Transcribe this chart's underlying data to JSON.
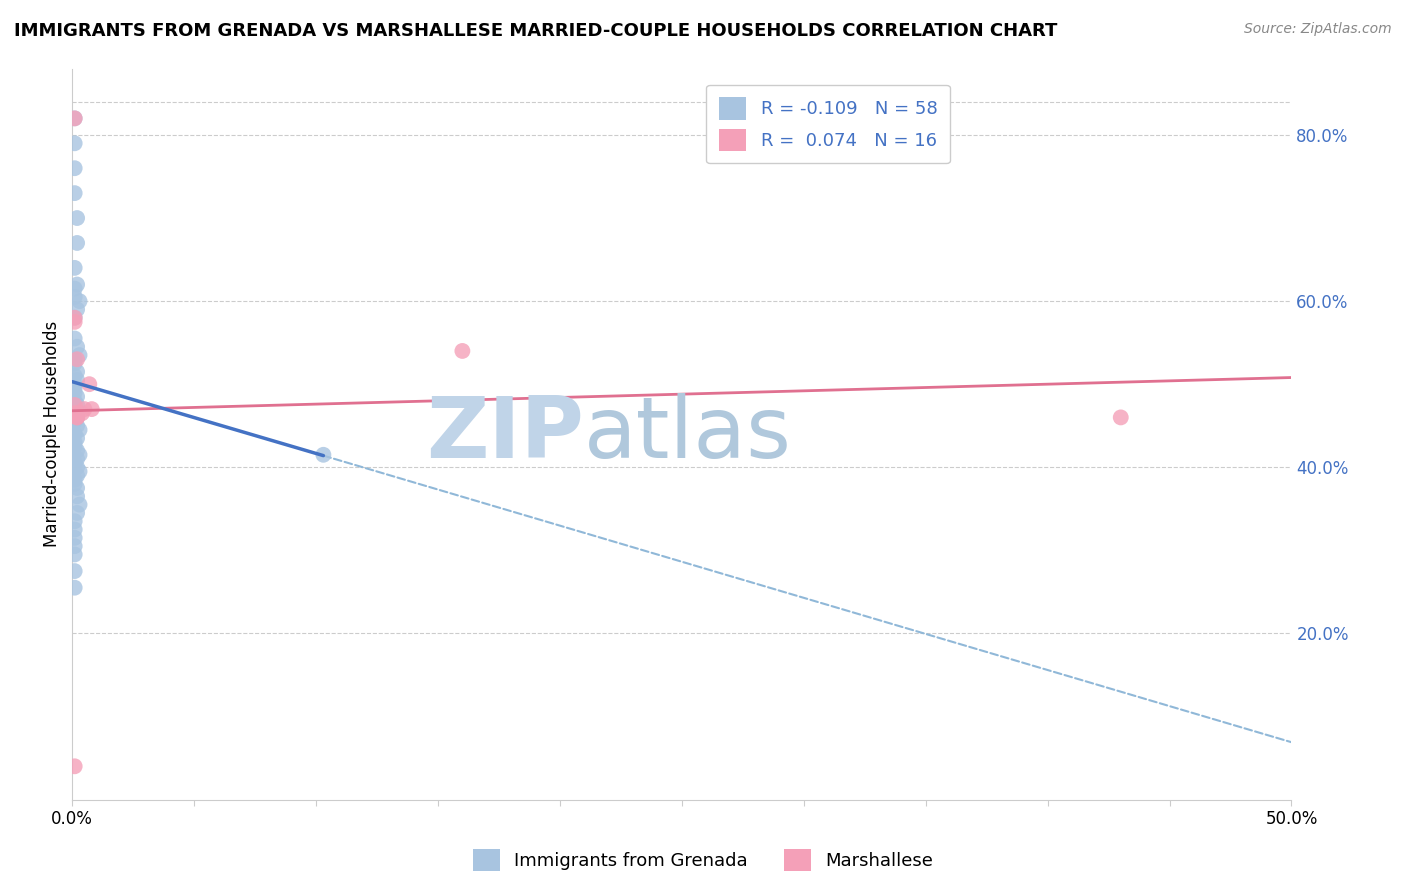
{
  "title": "IMMIGRANTS FROM GRENADA VS MARSHALLESE MARRIED-COUPLE HOUSEHOLDS CORRELATION CHART",
  "source": "Source: ZipAtlas.com",
  "ylabel_left": "Married-couple Households",
  "legend_label1": "Immigrants from Grenada",
  "legend_label2": "Marshallese",
  "R1": -0.109,
  "N1": 58,
  "R2": 0.074,
  "N2": 16,
  "color_blue": "#a8c4e0",
  "color_pink": "#f4a0b8",
  "line_blue": "#4472c4",
  "line_pink": "#e07090",
  "line_dashed": "#90b8d8",
  "xlim": [
    0.0,
    0.5
  ],
  "ylim": [
    0.0,
    0.88
  ],
  "xticks": [
    0.0,
    0.05,
    0.1,
    0.15,
    0.2,
    0.25,
    0.3,
    0.35,
    0.4,
    0.45,
    0.5
  ],
  "xtick_labels": [
    "0.0%",
    "",
    "",
    "",
    "",
    "",
    "",
    "",
    "",
    "",
    "50.0%"
  ],
  "yticks_right": [
    0.2,
    0.4,
    0.6,
    0.8
  ],
  "ytick_labels_right": [
    "20.0%",
    "40.0%",
    "60.0%",
    "80.0%"
  ],
  "blue_points_x": [
    0.001,
    0.001,
    0.001,
    0.001,
    0.002,
    0.002,
    0.001,
    0.002,
    0.003,
    0.001,
    0.001,
    0.002,
    0.001,
    0.001,
    0.002,
    0.003,
    0.001,
    0.001,
    0.002,
    0.001,
    0.002,
    0.001,
    0.001,
    0.001,
    0.002,
    0.001,
    0.002,
    0.001,
    0.001,
    0.002,
    0.001,
    0.002,
    0.003,
    0.001,
    0.002,
    0.001,
    0.001,
    0.002,
    0.003,
    0.002,
    0.001,
    0.002,
    0.003,
    0.002,
    0.001,
    0.001,
    0.002,
    0.002,
    0.003,
    0.002,
    0.001,
    0.001,
    0.001,
    0.001,
    0.001,
    0.001,
    0.001,
    0.103
  ],
  "blue_points_y": [
    0.82,
    0.79,
    0.76,
    0.73,
    0.7,
    0.67,
    0.64,
    0.62,
    0.6,
    0.615,
    0.605,
    0.59,
    0.58,
    0.555,
    0.545,
    0.535,
    0.53,
    0.525,
    0.515,
    0.51,
    0.505,
    0.5,
    0.495,
    0.49,
    0.485,
    0.48,
    0.475,
    0.47,
    0.465,
    0.46,
    0.455,
    0.45,
    0.445,
    0.44,
    0.435,
    0.43,
    0.425,
    0.42,
    0.415,
    0.41,
    0.405,
    0.4,
    0.395,
    0.39,
    0.385,
    0.38,
    0.375,
    0.365,
    0.355,
    0.345,
    0.335,
    0.325,
    0.315,
    0.305,
    0.295,
    0.275,
    0.255,
    0.415
  ],
  "pink_points_x": [
    0.001,
    0.001,
    0.002,
    0.001,
    0.002,
    0.005,
    0.004,
    0.007,
    0.001,
    0.002,
    0.008,
    0.16,
    0.43,
    0.001,
    0.002,
    0.001
  ],
  "pink_points_y": [
    0.82,
    0.575,
    0.53,
    0.58,
    0.46,
    0.47,
    0.465,
    0.5,
    0.465,
    0.465,
    0.47,
    0.54,
    0.46,
    0.475,
    0.46,
    0.04
  ],
  "blue_line_x0": 0.0,
  "blue_line_x1": 0.103,
  "blue_line_y0": 0.503,
  "blue_line_y1": 0.414,
  "pink_line_x0": 0.0,
  "pink_line_x1": 0.5,
  "pink_line_y0": 0.468,
  "pink_line_y1": 0.508,
  "dash_line_x0": 0.0,
  "dash_line_x1": 0.5,
  "dash_line_y0": 0.503,
  "dash_line_y1": 0.069,
  "watermark1": "ZIP",
  "watermark2": "atlas",
  "watermark_color1": "#c0d4e8",
  "watermark_color2": "#b0c8dc",
  "watermark_fontsize": 62
}
